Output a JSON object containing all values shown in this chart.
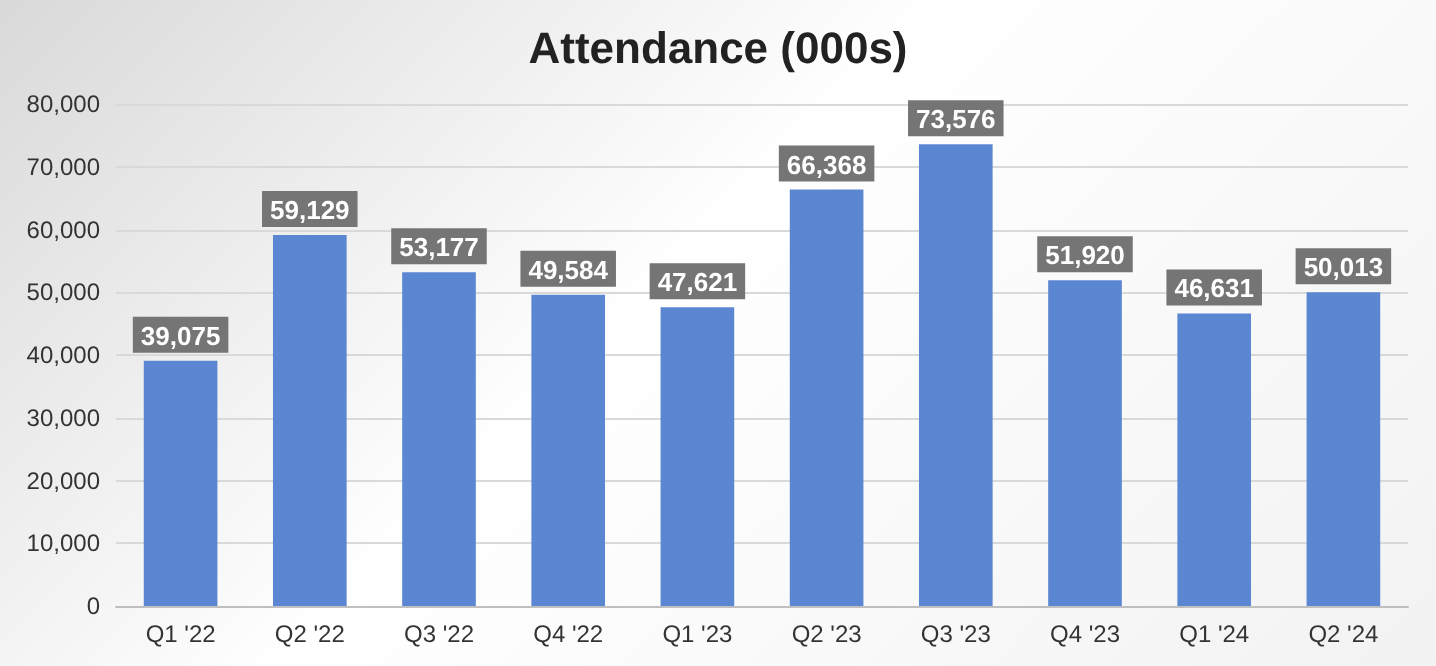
{
  "chart_data": {
    "type": "bar",
    "title": "Attendance (000s)",
    "categories": [
      "Q1 '22",
      "Q2 '22",
      "Q3 '22",
      "Q4 '22",
      "Q1 '23",
      "Q2 '23",
      "Q3 '23",
      "Q4 '23",
      "Q1 '24",
      "Q2 '24"
    ],
    "values": [
      39075,
      59129,
      53177,
      49584,
      47621,
      66368,
      73576,
      51920,
      46631,
      50013
    ],
    "value_labels": [
      "39,075",
      "59,129",
      "53,177",
      "49,584",
      "47,621",
      "66,368",
      "73,576",
      "51,920",
      "46,631",
      "50,013"
    ],
    "color": "#5b87d2",
    "ylim": [
      0,
      80000
    ],
    "yticks": [
      0,
      {
        "value": 10000,
        "label": "10,000"
      },
      {
        "value": 20000,
        "label": "20,000"
      },
      {
        "value": 30000,
        "label": "30,000"
      },
      {
        "value": 40000,
        "label": "40,000"
      },
      {
        "value": 50000,
        "label": "50,000"
      },
      {
        "value": 60000,
        "label": "60,000"
      },
      {
        "value": 70000,
        "label": "70,000"
      },
      {
        "value": 80000,
        "label": "80,000"
      }
    ],
    "grid": "y"
  }
}
